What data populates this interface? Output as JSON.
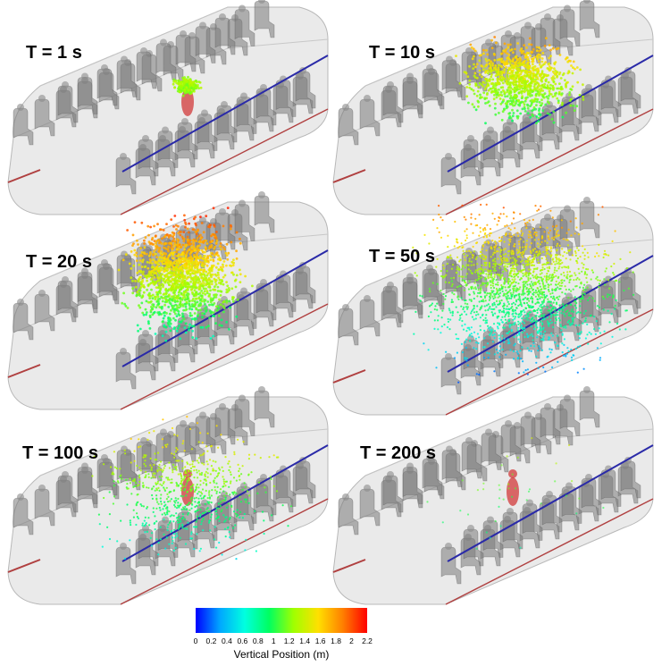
{
  "panels": [
    {
      "label": "T = 1 s",
      "stage": 1
    },
    {
      "label": "T = 10 s",
      "stage": 2
    },
    {
      "label": "T = 20 s",
      "stage": 3
    },
    {
      "label": "T = 50 s",
      "stage": 4
    },
    {
      "label": "T = 100 s",
      "stage": 5
    },
    {
      "label": "T = 200 s",
      "stage": 6
    }
  ],
  "colorbar": {
    "title": "Vertical Position (m)",
    "ticks": [
      "0",
      "0.2",
      "0.4",
      "0.6",
      "0.8",
      "1",
      "1.2",
      "1.4",
      "1.6",
      "1.8",
      "2",
      "2.2"
    ],
    "min": 0,
    "max": 2.2,
    "colors": [
      "#0000ff",
      "#00a8ff",
      "#00ffe0",
      "#00ff60",
      "#a0ff00",
      "#ffe000",
      "#ff8000",
      "#ff0000"
    ]
  },
  "colors": {
    "cabin_shell": "#d8d8d8",
    "seat": "#7a7a7a",
    "aisle_line": "#2a2aa8",
    "floor_edge": "#b04040"
  }
}
